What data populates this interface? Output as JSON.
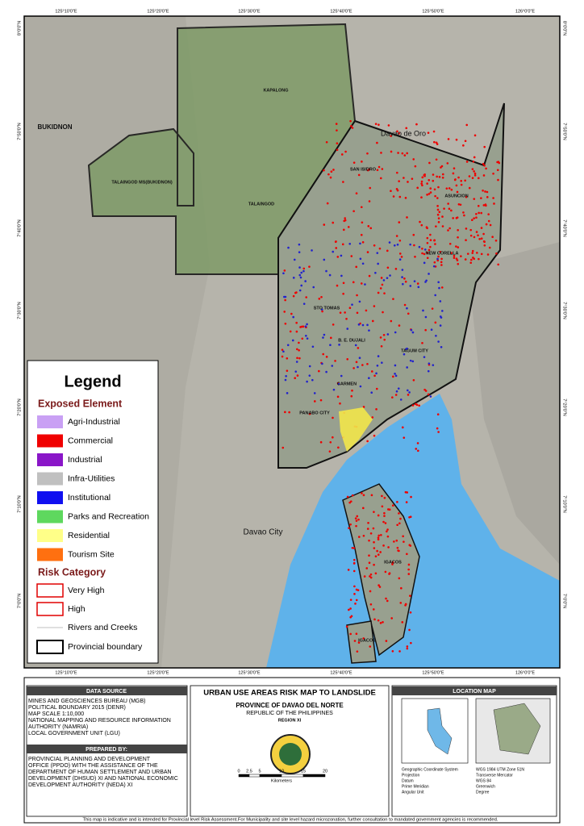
{
  "map": {
    "lon_labels": [
      "125°10'0\"E",
      "125°20'0\"E",
      "125°30'0\"E",
      "125°40'0\"E",
      "125°50'0\"E",
      "126°0'0\"E"
    ],
    "lat_labels": [
      "8°0'0\"N",
      "7°50'0\"N",
      "7°40'0\"N",
      "7°30'0\"N",
      "7°20'0\"N",
      "7°10'0\"N",
      "7°0'0\"N"
    ],
    "places": [
      "BUKIDNON",
      "Davao de Oro",
      "KAPALONG",
      "TALAINGOD MS(BUKIDNON)",
      "TALAINGOD",
      "SAN ISIDRO",
      "ASUNCION",
      "NEW CORELLA",
      "STO TOMAS",
      "B. E. DUJALI",
      "TAGUM CITY",
      "CARMEN",
      "PANABO CITY",
      "Davao City",
      "IGACOS",
      "IGACOS"
    ]
  },
  "legend": {
    "title": "Legend",
    "exposed_title": "Exposed Element",
    "exposed": [
      {
        "label": "Agri-Industrial",
        "color": "#c9a0f4"
      },
      {
        "label": "Commercial",
        "color": "#f00000"
      },
      {
        "label": "Industrial",
        "color": "#8a16c8"
      },
      {
        "label": "Infra-Utilities",
        "color": "#c0c0c0"
      },
      {
        "label": "Institutional",
        "color": "#1010f0"
      },
      {
        "label": "Parks and Recreation",
        "color": "#5ed85e"
      },
      {
        "label": "Residential",
        "color": "#ffff88"
      },
      {
        "label": "Tourism Site",
        "color": "#ff7010"
      }
    ],
    "risk_title": "Risk Category",
    "risk": [
      {
        "label": "Very High",
        "color": "#e00000"
      },
      {
        "label": "High",
        "color": "#e00000"
      }
    ],
    "rivers": "Rivers and Creeks",
    "boundary": "Provincial boundary"
  },
  "footer": {
    "data_source_title": "DATA SOURCE",
    "data_source": [
      "MINES AND GEOSCIENCES BUREAU (MGB)",
      "POLITICAL BOUNDARY 2015 (DENR)",
      "MAP SCALE 1:10,000",
      "NATIONAL MAPPING AND RESOURCE INFORMATION",
      "AUTHORITY (NAMRIA)",
      "LOCAL GOVERNMENT UNIT (LGU)"
    ],
    "prepared_title": "PREPARED BY:",
    "prepared": [
      "PROVINCIAL PLANNING AND DEVELOPMENT",
      "OFFICE (PPDO) WITH THE ASSISTANCE OF THE",
      "DEPARTMENT OF HUMAN SETTLEMENT AND URBAN",
      "DEVELOPMENT (DHSUD) XI AND NATIONAL ECONOMIC",
      "DEVELOPMENT AUTHORITY (NEDA) XI"
    ],
    "title": "URBAN USE AREAS RISK MAP TO LANDSLIDE",
    "province": "PROVINCE OF DAVAO DEL NORTE",
    "republic": "REPUBLIC OF THE PHILIPPINES",
    "region": "REGION XI",
    "scale_labels": [
      "0",
      "2.5",
      "5",
      "10",
      "15",
      "20"
    ],
    "scale_unit": "Kilometers",
    "location_title": "LOCATION MAP",
    "projection": [
      [
        "Geographic Coordinate System",
        "WGS 1984 UTM Zone 51N"
      ],
      [
        "Projection",
        "Transverse Mercator"
      ],
      [
        "Datum",
        "WGS 84"
      ],
      [
        "Prime Meridian",
        "Greenwich"
      ],
      [
        "Angular Unit",
        "Degree"
      ]
    ],
    "note": "This map is indicative and is intended for Provincial level Risk Assessment.For Municipality and site level hazard microzonation, further consultation to mandated government agencies is recommended."
  }
}
